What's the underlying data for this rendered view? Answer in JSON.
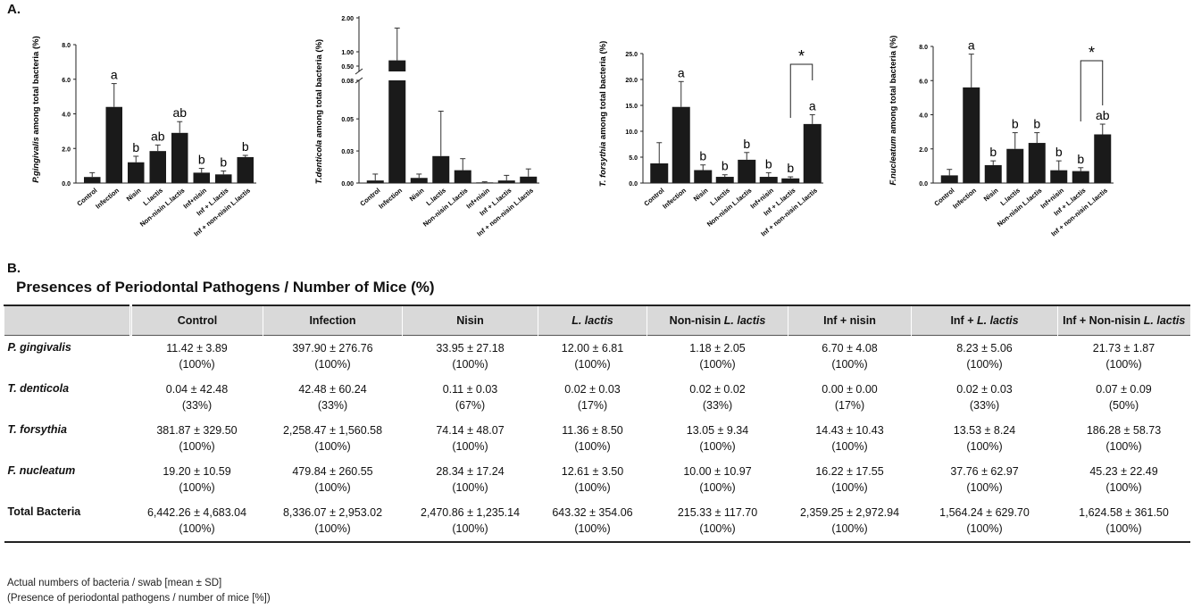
{
  "labels": {
    "panel_a": "A.",
    "panel_b": "B."
  },
  "chart_data": [
    {
      "type": "bar",
      "ylabel_italic": "P.gingivalis",
      "ylabel_rest": " among total bacteria (%)",
      "categories": [
        "Control",
        "Infection",
        "Nisin",
        "L.lactis",
        "Non-nisin L.lactis",
        "Inf+nisin",
        "Inf + L.lactis",
        "Inf + non-nisin L.lactis"
      ],
      "values": [
        0.35,
        4.4,
        1.2,
        1.85,
        2.9,
        0.6,
        0.5,
        1.5
      ],
      "errors": [
        0.25,
        1.35,
        0.35,
        0.35,
        0.65,
        0.25,
        0.2,
        0.1
      ],
      "letters": [
        "",
        "a",
        "b",
        "ab",
        "ab",
        "b",
        "b",
        "b"
      ],
      "yticks": [
        "0.0",
        "2.0",
        "4.0",
        "6.0",
        "8.0"
      ],
      "ylim": [
        0,
        8
      ]
    },
    {
      "type": "bar",
      "broken_axis": true,
      "ylabel_italic": "T.denticola",
      "ylabel_rest": " among total bacteria (%)",
      "categories": [
        "Control",
        "Infection",
        "Nisin",
        "L.lactis",
        "Non-nisin L.lactis",
        "Inf+nisin",
        "Inf + L.lactis",
        "Inf + non-nisin L.lactis"
      ],
      "values": [
        0.002,
        0.7,
        0.004,
        0.021,
        0.01,
        0.0005,
        0.002,
        0.005
      ],
      "errors": [
        0.005,
        1.0,
        0.003,
        0.035,
        0.009,
        0.0005,
        0.004,
        0.006
      ],
      "letters": [
        "",
        "",
        "",
        "",
        "",
        "",
        "",
        ""
      ],
      "yticks_lower": [
        "0.00",
        "0.03",
        "0.05",
        "0.08"
      ],
      "yticks_upper": [
        "0.50",
        "1.00",
        "2.00"
      ],
      "ylim_lower": [
        0,
        0.08
      ],
      "ylim_upper": [
        0.08,
        2.0
      ]
    },
    {
      "type": "bar",
      "ylabel_italic": "T. forsythia",
      "ylabel_rest": "  among total bacteria (%)",
      "categories": [
        "Control",
        "Infection",
        "Nisin",
        "L.lactis",
        "Non-nisin L.lactis",
        "Inf+nisin",
        "Inf + L.lactis",
        "Inf + non-nisin L.lactis"
      ],
      "values": [
        3.8,
        14.7,
        2.5,
        1.2,
        4.5,
        1.2,
        0.9,
        11.4
      ],
      "errors": [
        4.0,
        4.9,
        1.0,
        0.4,
        1.4,
        0.8,
        0.3,
        1.8
      ],
      "letters": [
        "",
        "a",
        "b",
        "b",
        "b",
        "b",
        "b",
        "a"
      ],
      "yticks": [
        "0.0",
        "5.0",
        "10.0",
        "15.0",
        "20.0",
        "25.0"
      ],
      "ylim": [
        0,
        25
      ],
      "significance": {
        "from": 6,
        "to": 7,
        "label": "*"
      }
    },
    {
      "type": "bar",
      "ylabel_italic": "F.nucleatum",
      "ylabel_rest": " among total bacteria (%)",
      "categories": [
        "Control",
        "Infection",
        "Nisin",
        "L.lactis",
        "Non-nisin L.lactis",
        "Inf+nisin",
        "Inf + L.lactis",
        "Inf + non-nisin L.lactis"
      ],
      "values": [
        0.45,
        5.6,
        1.05,
        2.0,
        2.35,
        0.75,
        0.7,
        2.85
      ],
      "errors": [
        0.35,
        1.95,
        0.25,
        0.95,
        0.6,
        0.55,
        0.2,
        0.6
      ],
      "letters": [
        "",
        "a",
        "b",
        "b",
        "b",
        "b",
        "b",
        "ab"
      ],
      "yticks": [
        "0.0",
        "2.0",
        "4.0",
        "6.0",
        "8.0"
      ],
      "ylim": [
        0,
        8
      ],
      "significance": {
        "from": 6,
        "to": 7,
        "label": "*"
      }
    }
  ],
  "table": {
    "title": "Presences of Periodontal Pathogens / Number of Mice (%)",
    "headers": [
      {
        "text": "",
        "italic": ""
      },
      {
        "text": "Control",
        "italic": ""
      },
      {
        "text": "Infection",
        "italic": ""
      },
      {
        "text": "Nisin",
        "italic": ""
      },
      {
        "text": "",
        "italic": "L. lactis"
      },
      {
        "text": "Non-nisin ",
        "italic": "L. lactis"
      },
      {
        "text": "Inf + nisin",
        "italic": ""
      },
      {
        "text": "Inf + ",
        "italic": "L. lactis"
      },
      {
        "text": "Inf + Non-nisin ",
        "italic": "L. lactis"
      }
    ],
    "rows": [
      {
        "name": "P. gingivalis",
        "italic": true,
        "cells": [
          [
            "11.42 ± 3.89",
            "(100%)"
          ],
          [
            "397.90  ±  276.76",
            "(100%)"
          ],
          [
            "33.95 ± 27.18",
            "(100%)"
          ],
          [
            "12.00 ± 6.81",
            "(100%)"
          ],
          [
            "1.18 ± 2.05",
            "(100%)"
          ],
          [
            "6.70 ± 4.08",
            "(100%)"
          ],
          [
            "8.23 ± 5.06",
            "(100%)"
          ],
          [
            "21.73 ± 1.87",
            "(100%)"
          ]
        ]
      },
      {
        "name": "T. denticola",
        "italic": true,
        "cells": [
          [
            "0.04 ± 42.48",
            "(33%)"
          ],
          [
            "42.48  ±  60.24",
            "(33%)"
          ],
          [
            "0.11 ± 0.03",
            "(67%)"
          ],
          [
            "0.02 ± 0.03",
            "(17%)"
          ],
          [
            "0.02 ± 0.02",
            "(33%)"
          ],
          [
            "0.00 ± 0.00",
            "(17%)"
          ],
          [
            "0.02 ± 0.03",
            "(33%)"
          ],
          [
            "0.07 ± 0.09",
            "(50%)"
          ]
        ]
      },
      {
        "name": "T. forsythia",
        "italic": true,
        "cells": [
          [
            "381.87 ± 329.50",
            "(100%)"
          ],
          [
            "2,258.47  ±  1,560.58",
            "(100%)"
          ],
          [
            "74.14 ± 48.07",
            "(100%)"
          ],
          [
            "11.36 ± 8.50",
            "(100%)"
          ],
          [
            "13.05 ± 9.34",
            "(100%)"
          ],
          [
            "14.43 ± 10.43",
            "(100%)"
          ],
          [
            "13.53 ± 8.24",
            "(100%)"
          ],
          [
            "186.28 ± 58.73",
            "(100%)"
          ]
        ]
      },
      {
        "name": "F. nucleatum",
        "italic": true,
        "cells": [
          [
            "19.20 ± 10.59",
            "(100%)"
          ],
          [
            "479.84  ±  260.55",
            "(100%)"
          ],
          [
            "28.34 ± 17.24",
            "(100%)"
          ],
          [
            "12.61 ± 3.50",
            "(100%)"
          ],
          [
            "10.00 ± 10.97",
            "(100%)"
          ],
          [
            "16.22 ± 17.55",
            "(100%)"
          ],
          [
            "37.76 ± 62.97",
            "(100%)"
          ],
          [
            "45.23 ± 22.49",
            "(100%)"
          ]
        ]
      },
      {
        "name": "Total Bacteria",
        "italic": false,
        "cells": [
          [
            "6,442.26 ± 4,683.04",
            "(100%)"
          ],
          [
            "8,336.07  ±  2,953.02",
            "(100%)"
          ],
          [
            "2,470.86 ± 1,235.14",
            "(100%)"
          ],
          [
            "643.32 ± 354.06",
            "(100%)"
          ],
          [
            "215.33 ± 117.70",
            "(100%)"
          ],
          [
            "2,359.25 ± 2,972.94",
            "(100%)"
          ],
          [
            "1,564.24 ± 629.70",
            "(100%)"
          ],
          [
            "1,624.58 ± 361.50",
            "(100%)"
          ]
        ]
      }
    ],
    "footnotes": [
      "Actual numbers of bacteria / swab [mean ± SD]",
      "(Presence of periodontal pathogens / number of mice [%])"
    ]
  }
}
